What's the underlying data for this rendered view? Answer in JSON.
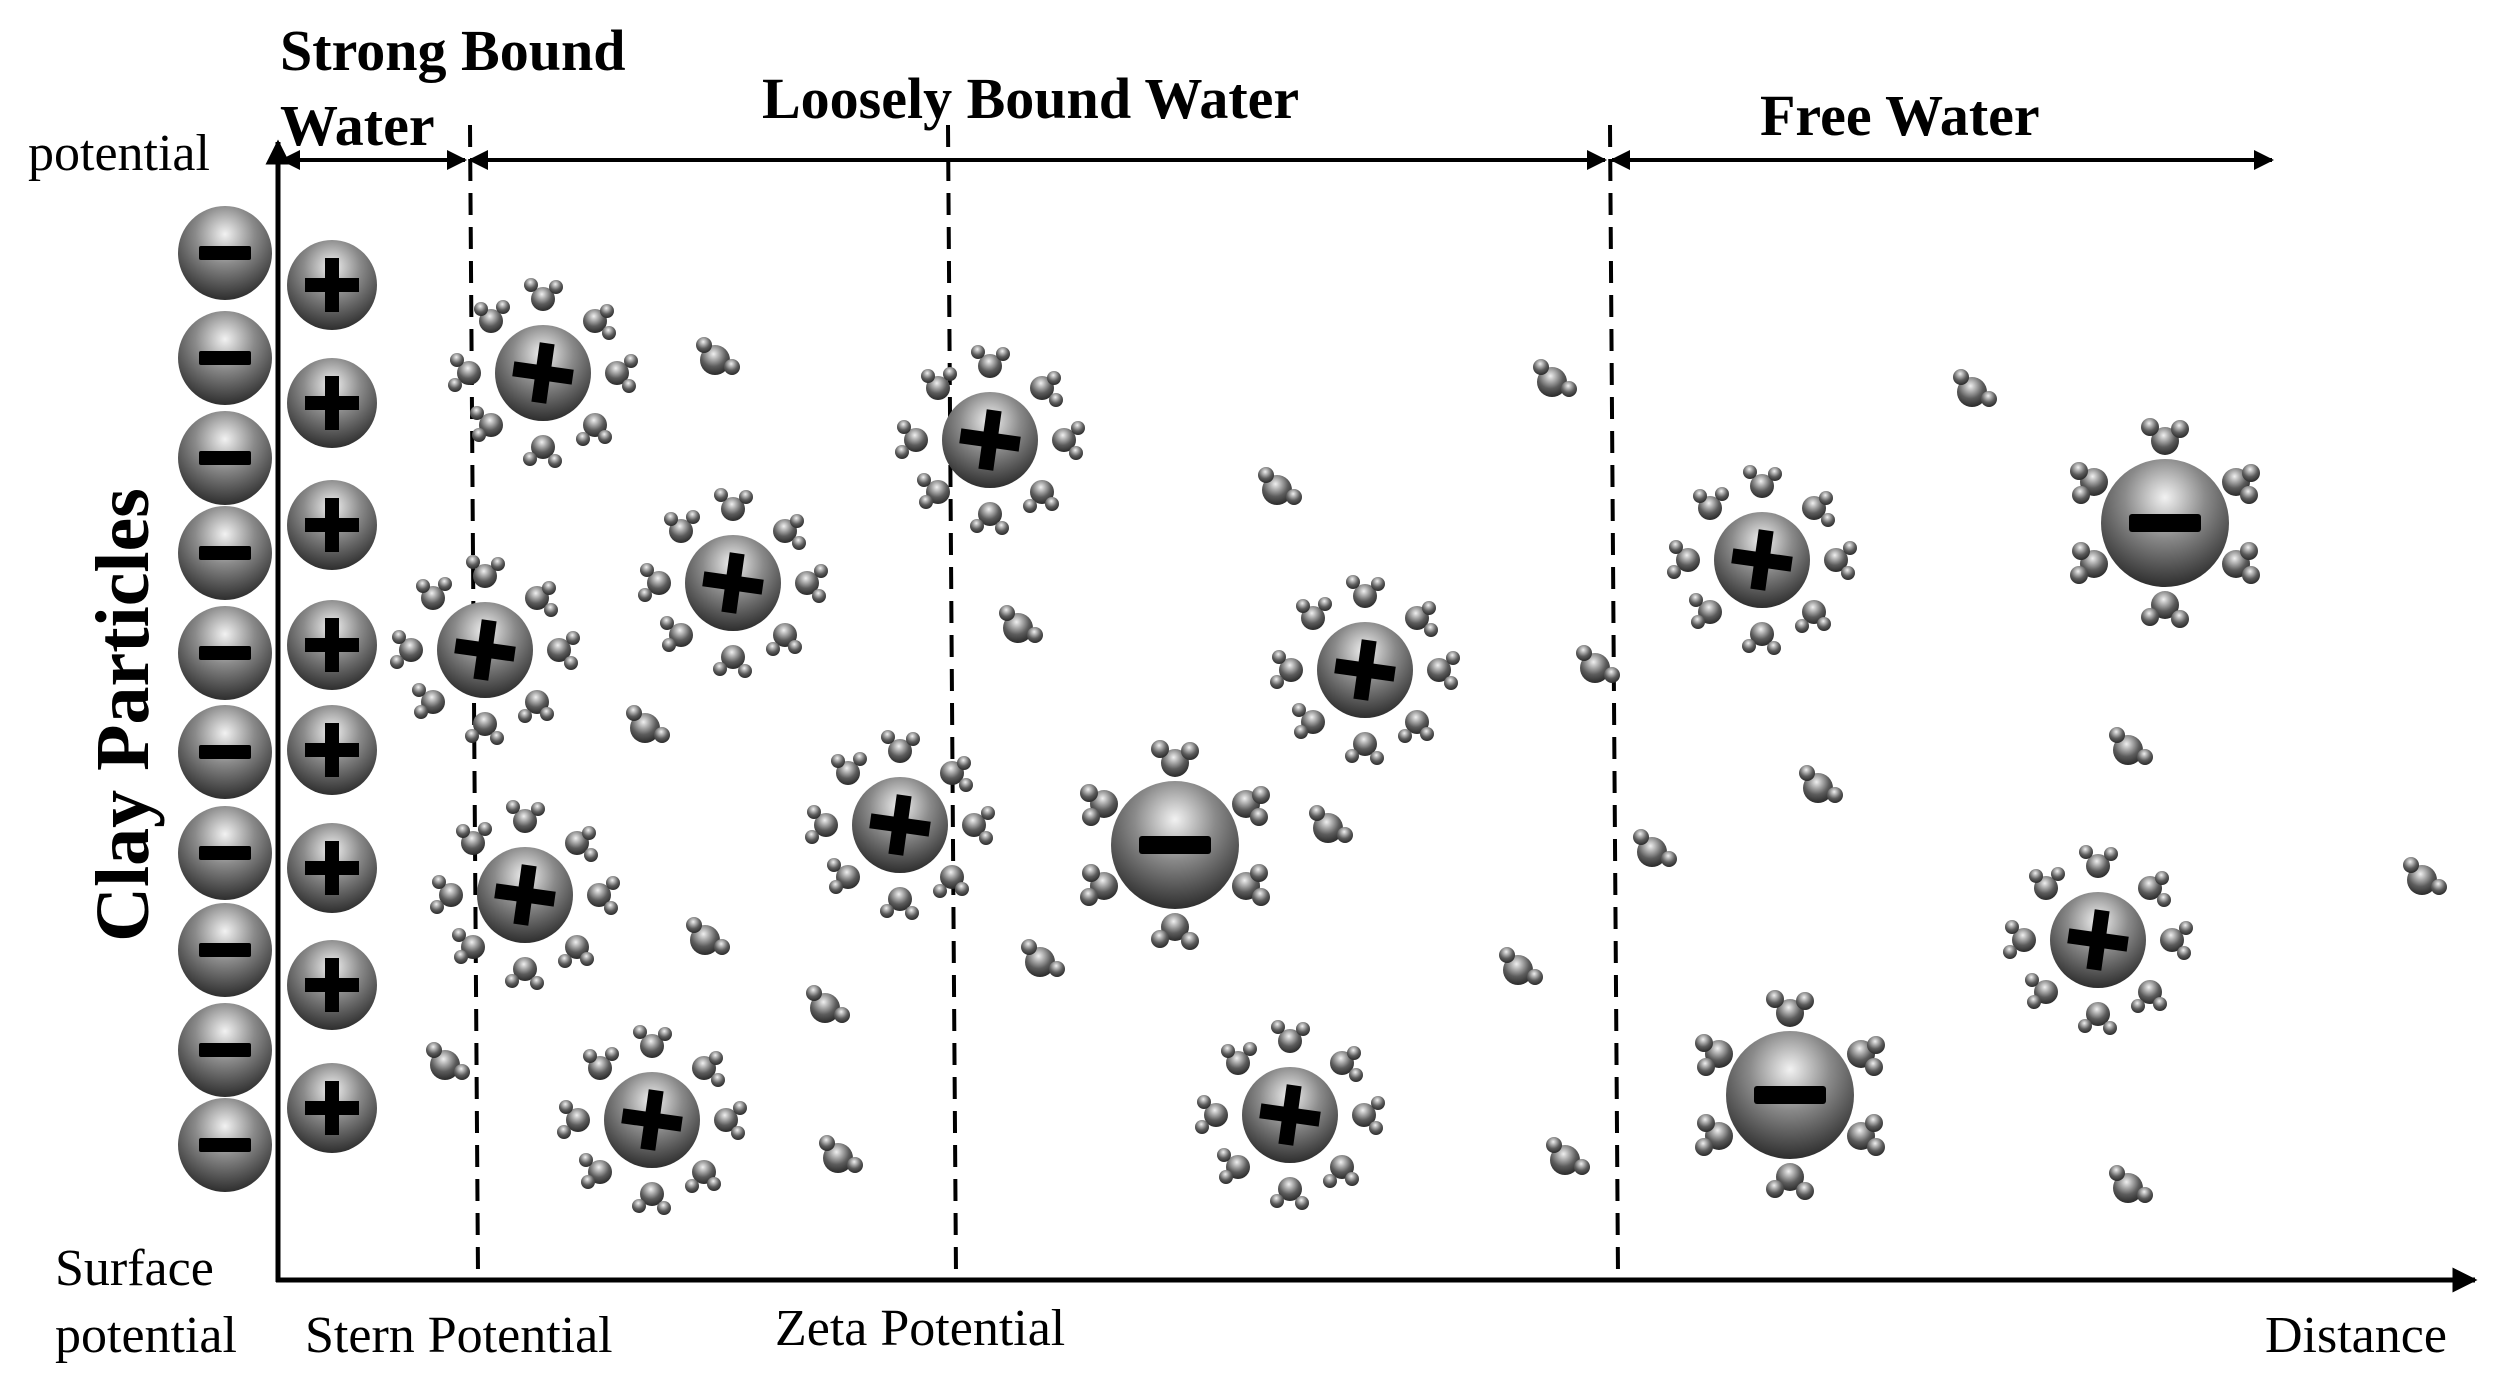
{
  "regions": {
    "strong": "Strong Bound Water",
    "strong_line1": "Strong Bound",
    "strong_line2": "Water",
    "loose": "Loosely Bound Water",
    "free": "Free Water"
  },
  "axis": {
    "y_label": "potential",
    "x_label": "Distance",
    "surface_line1": "Surface",
    "surface_line2": "potential"
  },
  "boundaries": {
    "stern": "Stern Potential",
    "zeta": "Zeta Potential"
  },
  "clay_label": "Clay Particles",
  "colors": {
    "ink": "#000000",
    "ion_dark": "#3a3a3a",
    "ion_light": "#f2f2f2"
  },
  "icons": {
    "anion": "minus-sign",
    "cation": "plus-sign",
    "water": "water-molecule"
  },
  "counts": {
    "surface_anions": 10,
    "surface_cations": 8
  }
}
